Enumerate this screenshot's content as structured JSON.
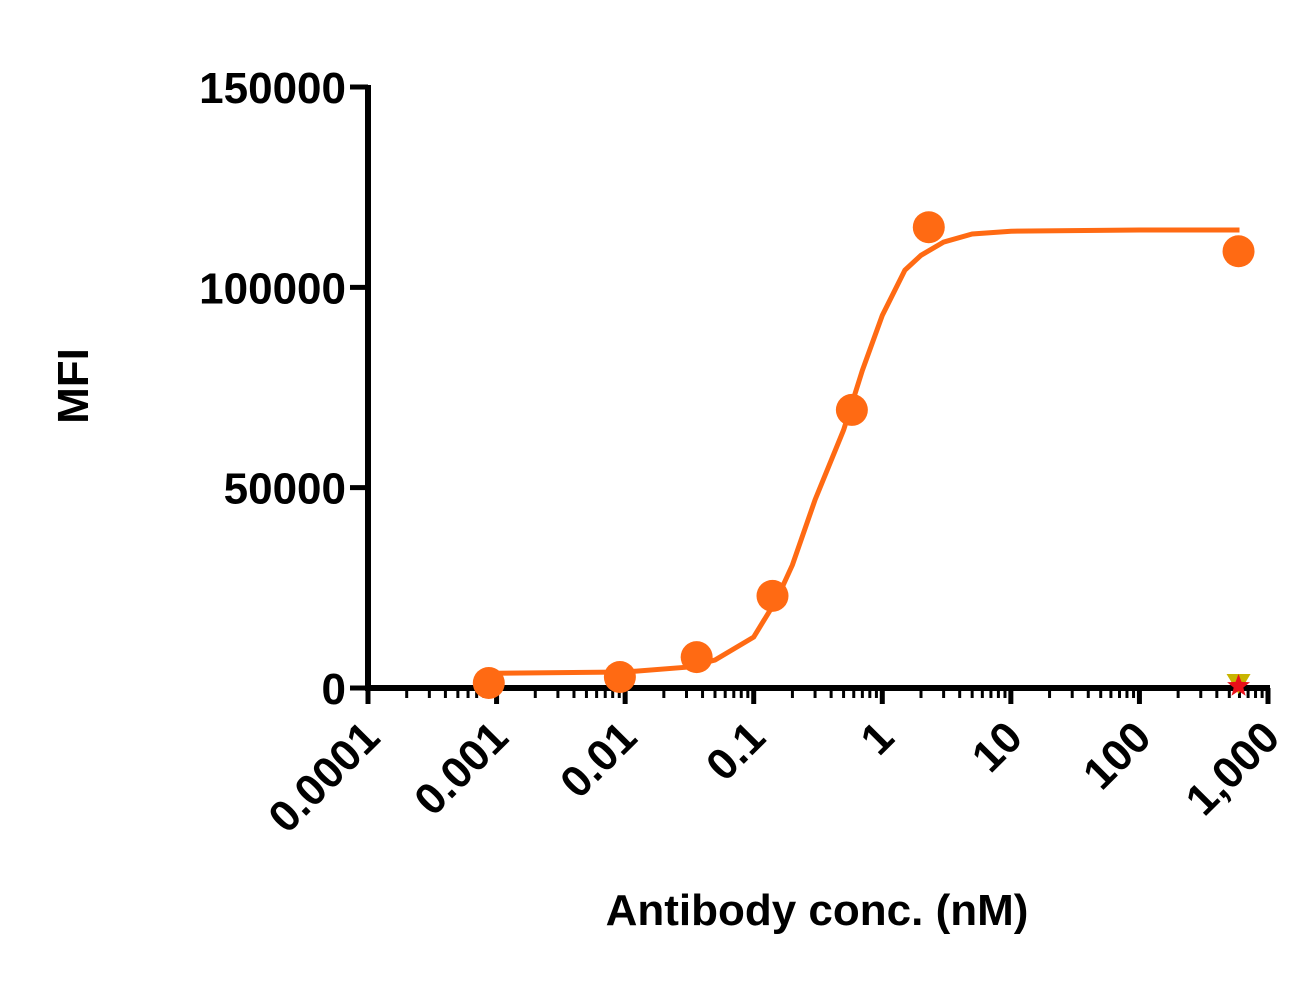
{
  "chart_data": {
    "type": "scatter",
    "x_label": "Antibody conc. (nM)",
    "y_label": "MFI",
    "xscale": "log",
    "minor_ticks": true,
    "xlim": [
      0.0001,
      1000
    ],
    "xticks": [
      0.0001,
      0.001,
      0.01,
      0.1,
      1,
      10,
      100,
      {
        "value": 1000,
        "label": "1,000"
      }
    ],
    "ylim": [
      0,
      150000
    ],
    "yticks": [
      0,
      50000,
      100000,
      150000
    ],
    "series": [
      {
        "color": "#FF6A13",
        "marker": "none",
        "line": true,
        "x": [
          0.00085,
          0.001,
          0.01,
          0.03,
          0.05,
          0.1,
          0.15,
          0.2,
          0.3,
          0.5,
          0.7,
          1,
          1.5,
          2,
          3,
          5,
          10,
          100,
          600
        ],
        "values": [
          3700,
          3700,
          4000,
          5200,
          7000,
          12700,
          22000,
          30700,
          47000,
          64400,
          79300,
          93000,
          104300,
          108000,
          111300,
          113300,
          114000,
          114300,
          114300
        ]
      },
      {
        "color": "#FF6A13",
        "marker": "circle",
        "line": false,
        "x": [
          0.00087,
          0.0091,
          0.036,
          0.14,
          0.58,
          2.3,
          590
        ],
        "values": [
          1250,
          2750,
          7700,
          23000,
          69400,
          115000,
          109000
        ]
      },
      {
        "color": "#C8B400",
        "marker": "triangle",
        "line": false,
        "x": [
          590
        ],
        "values": [
          1000
        ]
      },
      {
        "color": "#E8101A",
        "marker": "star",
        "line": false,
        "x": [
          590
        ],
        "values": [
          500
        ]
      }
    ]
  }
}
